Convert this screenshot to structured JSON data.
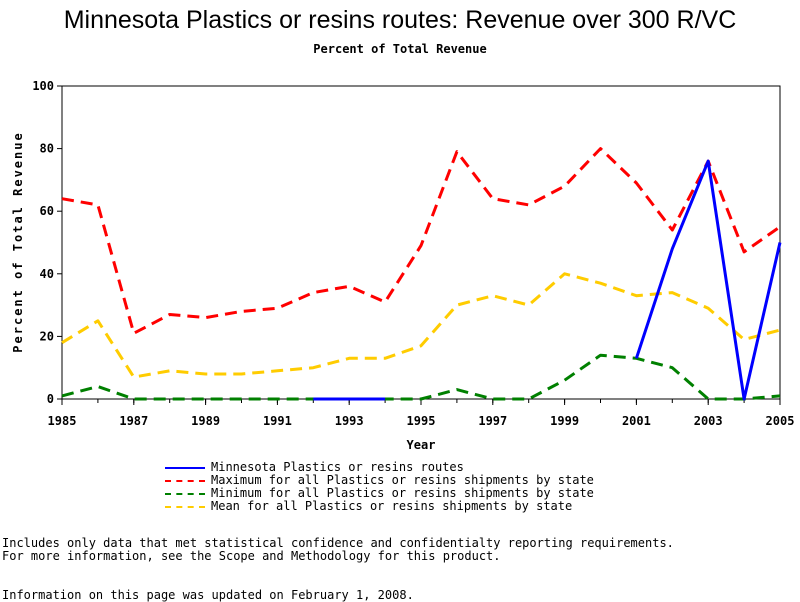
{
  "chart_data": {
    "type": "line",
    "title": "Minnesota Plastics or resins routes: Revenue over 300 R/VC",
    "subtitle": "Percent of Total Revenue",
    "xlabel": "Year",
    "ylabel": "Percent of Total Revenue",
    "xlim": [
      1985,
      2005
    ],
    "ylim": [
      0,
      100
    ],
    "x_ticks": [
      1985,
      1987,
      1989,
      1991,
      1993,
      1995,
      1997,
      1999,
      2001,
      2003,
      2005
    ],
    "y_ticks": [
      0,
      20,
      40,
      60,
      80,
      100
    ],
    "grid": false,
    "legend_position": "bottom",
    "series": [
      {
        "name": "Minnesota Plastics or resins routes",
        "color": "#0000ff",
        "dash": "solid",
        "points": [
          [
            1992,
            0
          ],
          [
            1993,
            0
          ],
          [
            1994,
            0
          ],
          [
            2001,
            13
          ],
          [
            2002,
            48
          ],
          [
            2003,
            76
          ],
          [
            2004,
            0
          ],
          [
            2005,
            50
          ]
        ],
        "segments": [
          [
            1992,
            1994
          ],
          [
            2001,
            2005
          ]
        ]
      },
      {
        "name": "Maximum for all Plastics or resins shipments by state",
        "color": "#ff0000",
        "dash": "dashed",
        "points": [
          [
            1985,
            64
          ],
          [
            1986,
            62
          ],
          [
            1987,
            21
          ],
          [
            1988,
            27
          ],
          [
            1989,
            26
          ],
          [
            1990,
            28
          ],
          [
            1991,
            29
          ],
          [
            1992,
            34
          ],
          [
            1993,
            36
          ],
          [
            1994,
            31
          ],
          [
            1995,
            49
          ],
          [
            1996,
            79
          ],
          [
            1997,
            64
          ],
          [
            1998,
            62
          ],
          [
            1999,
            68
          ],
          [
            2000,
            80
          ],
          [
            2001,
            69
          ],
          [
            2002,
            54
          ],
          [
            2003,
            76
          ],
          [
            2004,
            47
          ],
          [
            2005,
            55
          ]
        ]
      },
      {
        "name": "Minimum for all Plastics or resins shipments by state",
        "color": "#008000",
        "dash": "dashed",
        "points": [
          [
            1985,
            1
          ],
          [
            1986,
            4
          ],
          [
            1987,
            0
          ],
          [
            1988,
            0
          ],
          [
            1989,
            0
          ],
          [
            1990,
            0
          ],
          [
            1991,
            0
          ],
          [
            1992,
            0
          ],
          [
            1993,
            0
          ],
          [
            1994,
            0
          ],
          [
            1995,
            0
          ],
          [
            1996,
            3
          ],
          [
            1997,
            0
          ],
          [
            1998,
            0
          ],
          [
            1999,
            6
          ],
          [
            2000,
            14
          ],
          [
            2001,
            13
          ],
          [
            2002,
            10
          ],
          [
            2003,
            0
          ],
          [
            2004,
            0
          ],
          [
            2005,
            1
          ]
        ]
      },
      {
        "name": "Mean for all Plastics or resins shipments by state",
        "color": "#ffcc00",
        "dash": "dashed",
        "points": [
          [
            1985,
            18
          ],
          [
            1986,
            25
          ],
          [
            1987,
            7
          ],
          [
            1988,
            9
          ],
          [
            1989,
            8
          ],
          [
            1990,
            8
          ],
          [
            1991,
            9
          ],
          [
            1992,
            10
          ],
          [
            1993,
            13
          ],
          [
            1994,
            13
          ],
          [
            1995,
            17
          ],
          [
            1996,
            30
          ],
          [
            1997,
            33
          ],
          [
            1998,
            30
          ],
          [
            1999,
            40
          ],
          [
            2000,
            37
          ],
          [
            2001,
            33
          ],
          [
            2002,
            34
          ],
          [
            2003,
            29
          ],
          [
            2004,
            19
          ],
          [
            2005,
            22
          ]
        ]
      }
    ]
  },
  "footnotes": [
    "Includes only data that met statistical confidence and confidentialty reporting requirements.",
    "For more information, see the Scope and Methodology for this product.",
    "Information on this page was updated on February 1, 2008."
  ]
}
